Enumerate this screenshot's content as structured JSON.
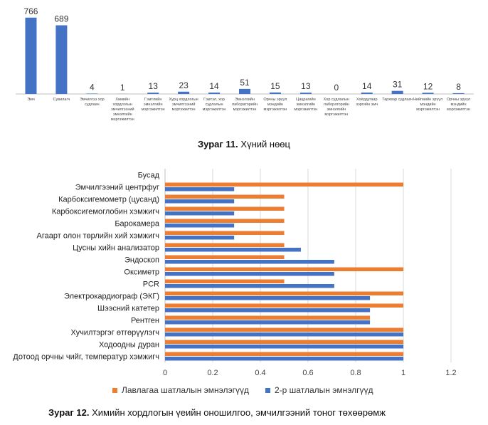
{
  "figure11": {
    "caption_label": "Зураг 11.",
    "caption_text": "Хүний нөөц"
  },
  "figure12": {
    "caption_label": "Зураг 12.",
    "caption_text": "Химийн хордлогын үеийн оношилгоо, эмчилгээний  тоног төхөөрөмж"
  },
  "colors": {
    "blue": "#4472C4",
    "orange": "#ED7D31",
    "axis": "#BFBFBF",
    "grid": "#D9D9D9"
  },
  "chart_data": [
    {
      "type": "bar",
      "categories": [
        "Эмч",
        "Сувилагч",
        "Эмчилгээ хор судлаач",
        "Химийн хордлогын эмчилгээний эмнэлгийн мэргэжилтэн",
        "Гэмтлийн эмнэлгийн мэргэжилтэн",
        "Хурц хордлогын эмчилгээний мэргэжилтэн",
        "Гэмтэл, хор судлалын мэргэжилтэн",
        "Эмнэлгийн лабораторийн мэргэжилтэн",
        "Орчны эрүүл мэндийн мэргэжилтэн",
        "Цацрагийн эмнэлгийн мэргэжилтэн",
        "Хор судлалын лабораторийн эмнэлгийн мэргэжилтэн",
        "Хоёрдугаар зэргийн эмч",
        "Тархвар судлаач",
        "Нийгмийн эрүүл мэндийн мэргэжилтэн",
        "Орчны эрүүл мэндийн мэргэжилтэн"
      ],
      "values": [
        766,
        689,
        4,
        1,
        13,
        23,
        14,
        51,
        15,
        13,
        0,
        14,
        31,
        12,
        8
      ],
      "data_labels": [
        "766",
        "689",
        "4",
        "1",
        "13",
        "23",
        "14",
        "51",
        "15",
        "13",
        "0",
        "14",
        "31",
        "12",
        "8"
      ],
      "ylim": [
        0,
        800
      ],
      "grid": false,
      "legend": "none",
      "xlabel": "",
      "ylabel": ""
    },
    {
      "type": "bar",
      "orientation": "horizontal",
      "categories": [
        "Дотоод орчны чийг, температур хэмжигч",
        "Ходоодны дуран",
        "Хучилтэргэг өтгөрүүлэгч",
        "Рентген",
        "Шээсний катетер",
        "Электрокардиограф (ЭКГ)",
        "PCR",
        "Оксиметр",
        "Эндоскоп",
        "Цусны хийн анализатор",
        "Агаарт олон төрлийн хий хэмжигч",
        "Барокамера",
        "Карбоксигемоглобин хэмжигч",
        "Карбоксигемометр (цусанд)",
        "Эмчилгээний центрфуг",
        "Бусад"
      ],
      "series": [
        {
          "name": "Лавлагаа шатлалын эмнэлэгүүд",
          "color": "#ED7D31",
          "values": [
            1,
            1,
            1,
            0.86,
            1,
            1,
            0.5,
            1,
            0.5,
            0.5,
            0.5,
            0.5,
            0.5,
            0.5,
            1,
            0
          ]
        },
        {
          "name": "2-р шатлалын эмнэлгүүд",
          "color": "#4472C4",
          "values": [
            1,
            1,
            1,
            0.86,
            0.86,
            0.86,
            0.71,
            0.71,
            0.71,
            0.57,
            0.29,
            0.29,
            0.29,
            0.29,
            0.29,
            0
          ]
        }
      ],
      "xlim": [
        0,
        1.2
      ],
      "x_ticks": [
        "0",
        "0.2",
        "0.4",
        "0.6",
        "0.8",
        "1",
        "1.2"
      ],
      "grid": true,
      "legend": "bottom",
      "xlabel": "",
      "ylabel": ""
    }
  ]
}
